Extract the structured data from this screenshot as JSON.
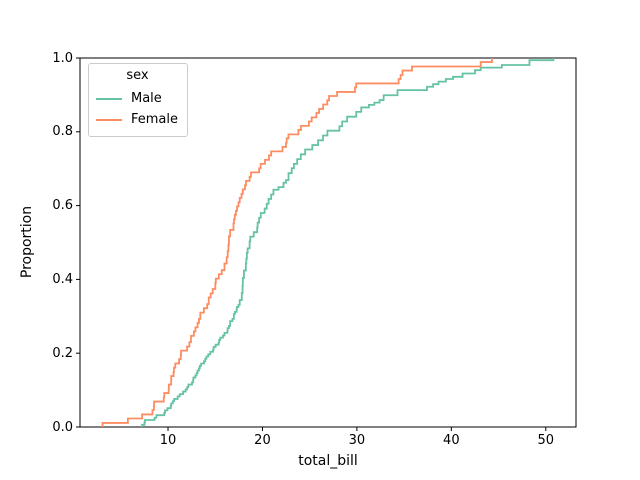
{
  "chart_data": {
    "type": "line",
    "subtype": "ecdf-step",
    "title": "",
    "xlabel": "total_bill",
    "ylabel": "Proportion",
    "xlim": [
      0.68,
      53.2
    ],
    "ylim": [
      0.0,
      1.0
    ],
    "grid": false,
    "xticks": [
      {
        "value": 10,
        "label": "10"
      },
      {
        "value": 20,
        "label": "20"
      },
      {
        "value": 30,
        "label": "30"
      },
      {
        "value": 40,
        "label": "40"
      },
      {
        "value": 50,
        "label": "50"
      }
    ],
    "yticks": [
      {
        "value": 0.0,
        "label": "0.0"
      },
      {
        "value": 0.2,
        "label": "0.2"
      },
      {
        "value": 0.4,
        "label": "0.4"
      },
      {
        "value": 0.6,
        "label": "0.6"
      },
      {
        "value": 0.8,
        "label": "0.8"
      },
      {
        "value": 1.0,
        "label": "1.0"
      }
    ],
    "legend": {
      "title": "sex",
      "position": "upper-left"
    },
    "series": [
      {
        "name": "Male",
        "color": "#66c2a5",
        "points": [
          [
            7.25,
            0.006
          ],
          [
            7.51,
            0.013
          ],
          [
            7.56,
            0.019
          ],
          [
            8.58,
            0.025
          ],
          [
            8.77,
            0.032
          ],
          [
            9.6,
            0.038
          ],
          [
            9.68,
            0.045
          ],
          [
            9.94,
            0.051
          ],
          [
            10.29,
            0.057
          ],
          [
            10.34,
            0.064
          ],
          [
            10.51,
            0.07
          ],
          [
            10.65,
            0.076
          ],
          [
            11.02,
            0.083
          ],
          [
            11.24,
            0.089
          ],
          [
            11.59,
            0.096
          ],
          [
            11.87,
            0.102
          ],
          [
            12.03,
            0.108
          ],
          [
            12.16,
            0.115
          ],
          [
            12.54,
            0.121
          ],
          [
            12.66,
            0.127
          ],
          [
            12.69,
            0.134
          ],
          [
            12.9,
            0.14
          ],
          [
            13.03,
            0.146
          ],
          [
            13.13,
            0.153
          ],
          [
            13.27,
            0.159
          ],
          [
            13.37,
            0.166
          ],
          [
            13.51,
            0.172
          ],
          [
            13.81,
            0.178
          ],
          [
            13.94,
            0.185
          ],
          [
            14.07,
            0.191
          ],
          [
            14.26,
            0.197
          ],
          [
            14.48,
            0.204
          ],
          [
            14.78,
            0.21
          ],
          [
            14.83,
            0.217
          ],
          [
            15.04,
            0.223
          ],
          [
            15.36,
            0.229
          ],
          [
            15.42,
            0.236
          ],
          [
            15.53,
            0.242
          ],
          [
            15.81,
            0.248
          ],
          [
            15.98,
            0.255
          ],
          [
            16.29,
            0.261
          ],
          [
            16.31,
            0.268
          ],
          [
            16.45,
            0.274
          ],
          [
            16.58,
            0.287
          ],
          [
            16.82,
            0.293
          ],
          [
            16.97,
            0.306
          ],
          [
            17.07,
            0.312
          ],
          [
            17.26,
            0.318
          ],
          [
            17.29,
            0.325
          ],
          [
            17.46,
            0.331
          ],
          [
            17.59,
            0.344
          ],
          [
            17.81,
            0.363
          ],
          [
            17.89,
            0.382
          ],
          [
            17.92,
            0.404
          ],
          [
            18.04,
            0.424
          ],
          [
            18.24,
            0.443
          ],
          [
            18.29,
            0.456
          ],
          [
            18.35,
            0.472
          ],
          [
            18.43,
            0.484
          ],
          [
            18.64,
            0.503
          ],
          [
            18.71,
            0.516
          ],
          [
            19.08,
            0.528
          ],
          [
            19.44,
            0.541
          ],
          [
            19.49,
            0.554
          ],
          [
            19.65,
            0.567
          ],
          [
            19.82,
            0.58
          ],
          [
            20.23,
            0.592
          ],
          [
            20.45,
            0.605
          ],
          [
            20.65,
            0.618
          ],
          [
            20.92,
            0.63
          ],
          [
            21.16,
            0.643
          ],
          [
            21.7,
            0.65
          ],
          [
            22.23,
            0.662
          ],
          [
            22.49,
            0.669
          ],
          [
            22.76,
            0.688
          ],
          [
            23.1,
            0.701
          ],
          [
            23.33,
            0.713
          ],
          [
            23.68,
            0.726
          ],
          [
            24.06,
            0.739
          ],
          [
            24.52,
            0.752
          ],
          [
            25.28,
            0.764
          ],
          [
            25.89,
            0.777
          ],
          [
            26.41,
            0.79
          ],
          [
            26.88,
            0.803
          ],
          [
            28.15,
            0.815
          ],
          [
            28.44,
            0.828
          ],
          [
            28.97,
            0.841
          ],
          [
            29.93,
            0.854
          ],
          [
            30.46,
            0.866
          ],
          [
            31.27,
            0.873
          ],
          [
            31.85,
            0.879
          ],
          [
            32.4,
            0.886
          ],
          [
            32.83,
            0.899
          ],
          [
            34.3,
            0.913
          ],
          [
            37.42,
            0.922
          ],
          [
            38.07,
            0.929
          ],
          [
            38.64,
            0.936
          ],
          [
            39.42,
            0.943
          ],
          [
            40.17,
            0.949
          ],
          [
            41.19,
            0.958
          ],
          [
            42.5,
            0.967
          ],
          [
            43.11,
            0.974
          ],
          [
            45.35,
            0.981
          ],
          [
            48.27,
            0.994
          ],
          [
            50.81,
            1.0
          ]
        ]
      },
      {
        "name": "Female",
        "color": "#fc8d62",
        "points": [
          [
            3.07,
            0.011
          ],
          [
            5.75,
            0.023
          ],
          [
            7.25,
            0.034
          ],
          [
            8.35,
            0.046
          ],
          [
            8.51,
            0.057
          ],
          [
            8.52,
            0.069
          ],
          [
            9.55,
            0.08
          ],
          [
            9.6,
            0.092
          ],
          [
            10.07,
            0.103
          ],
          [
            10.09,
            0.115
          ],
          [
            10.33,
            0.126
          ],
          [
            10.34,
            0.138
          ],
          [
            10.59,
            0.149
          ],
          [
            10.63,
            0.161
          ],
          [
            10.77,
            0.172
          ],
          [
            11.17,
            0.184
          ],
          [
            11.35,
            0.195
          ],
          [
            11.38,
            0.207
          ],
          [
            12.02,
            0.218
          ],
          [
            12.26,
            0.23
          ],
          [
            12.43,
            0.247
          ],
          [
            12.74,
            0.259
          ],
          [
            12.9,
            0.27
          ],
          [
            13.13,
            0.282
          ],
          [
            13.28,
            0.293
          ],
          [
            13.42,
            0.31
          ],
          [
            13.8,
            0.322
          ],
          [
            14.15,
            0.333
          ],
          [
            14.31,
            0.351
          ],
          [
            14.52,
            0.362
          ],
          [
            14.73,
            0.374
          ],
          [
            15.01,
            0.391
          ],
          [
            15.06,
            0.402
          ],
          [
            15.38,
            0.414
          ],
          [
            15.69,
            0.425
          ],
          [
            15.98,
            0.443
          ],
          [
            16.21,
            0.46
          ],
          [
            16.32,
            0.477
          ],
          [
            16.4,
            0.494
          ],
          [
            16.45,
            0.517
          ],
          [
            16.58,
            0.534
          ],
          [
            16.93,
            0.552
          ],
          [
            16.99,
            0.563
          ],
          [
            17.07,
            0.575
          ],
          [
            17.19,
            0.586
          ],
          [
            17.31,
            0.598
          ],
          [
            17.46,
            0.609
          ],
          [
            17.59,
            0.621
          ],
          [
            17.78,
            0.632
          ],
          [
            17.92,
            0.644
          ],
          [
            18.15,
            0.655
          ],
          [
            18.26,
            0.667
          ],
          [
            18.64,
            0.678
          ],
          [
            18.78,
            0.69
          ],
          [
            19.65,
            0.701
          ],
          [
            19.81,
            0.713
          ],
          [
            20.27,
            0.724
          ],
          [
            20.69,
            0.736
          ],
          [
            20.92,
            0.747
          ],
          [
            22.12,
            0.759
          ],
          [
            22.49,
            0.77
          ],
          [
            22.56,
            0.782
          ],
          [
            22.75,
            0.793
          ],
          [
            23.8,
            0.805
          ],
          [
            24.08,
            0.816
          ],
          [
            24.92,
            0.828
          ],
          [
            25.21,
            0.839
          ],
          [
            25.71,
            0.851
          ],
          [
            26.0,
            0.862
          ],
          [
            26.43,
            0.874
          ],
          [
            26.86,
            0.885
          ],
          [
            27.05,
            0.897
          ],
          [
            27.9,
            0.908
          ],
          [
            29.8,
            0.92
          ],
          [
            29.93,
            0.931
          ],
          [
            34.42,
            0.943
          ],
          [
            34.63,
            0.954
          ],
          [
            34.83,
            0.966
          ],
          [
            35.83,
            0.977
          ],
          [
            43.11,
            0.989
          ],
          [
            44.3,
            1.0
          ]
        ]
      }
    ]
  }
}
